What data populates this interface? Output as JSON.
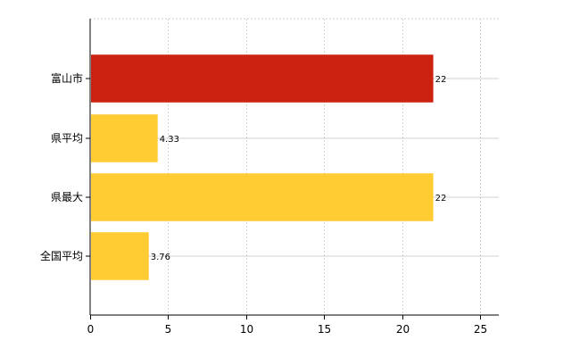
{
  "chart_data": {
    "type": "bar",
    "orientation": "horizontal",
    "categories": [
      "富山市",
      "県平均",
      "県最大",
      "全国平均"
    ],
    "values": [
      22,
      4.33,
      22,
      3.76
    ],
    "value_labels": [
      "22",
      "4.33",
      "22",
      "3.76"
    ],
    "bar_colors": [
      "#cc2211",
      "#ffcc33",
      "#ffcc33",
      "#ffcc33"
    ],
    "xlim": [
      0,
      26.2
    ],
    "xticks": [
      0,
      5,
      10,
      15,
      20,
      25
    ],
    "title": "",
    "xlabel": "",
    "ylabel": "",
    "grid": "vertical dashed",
    "legend": "none"
  }
}
